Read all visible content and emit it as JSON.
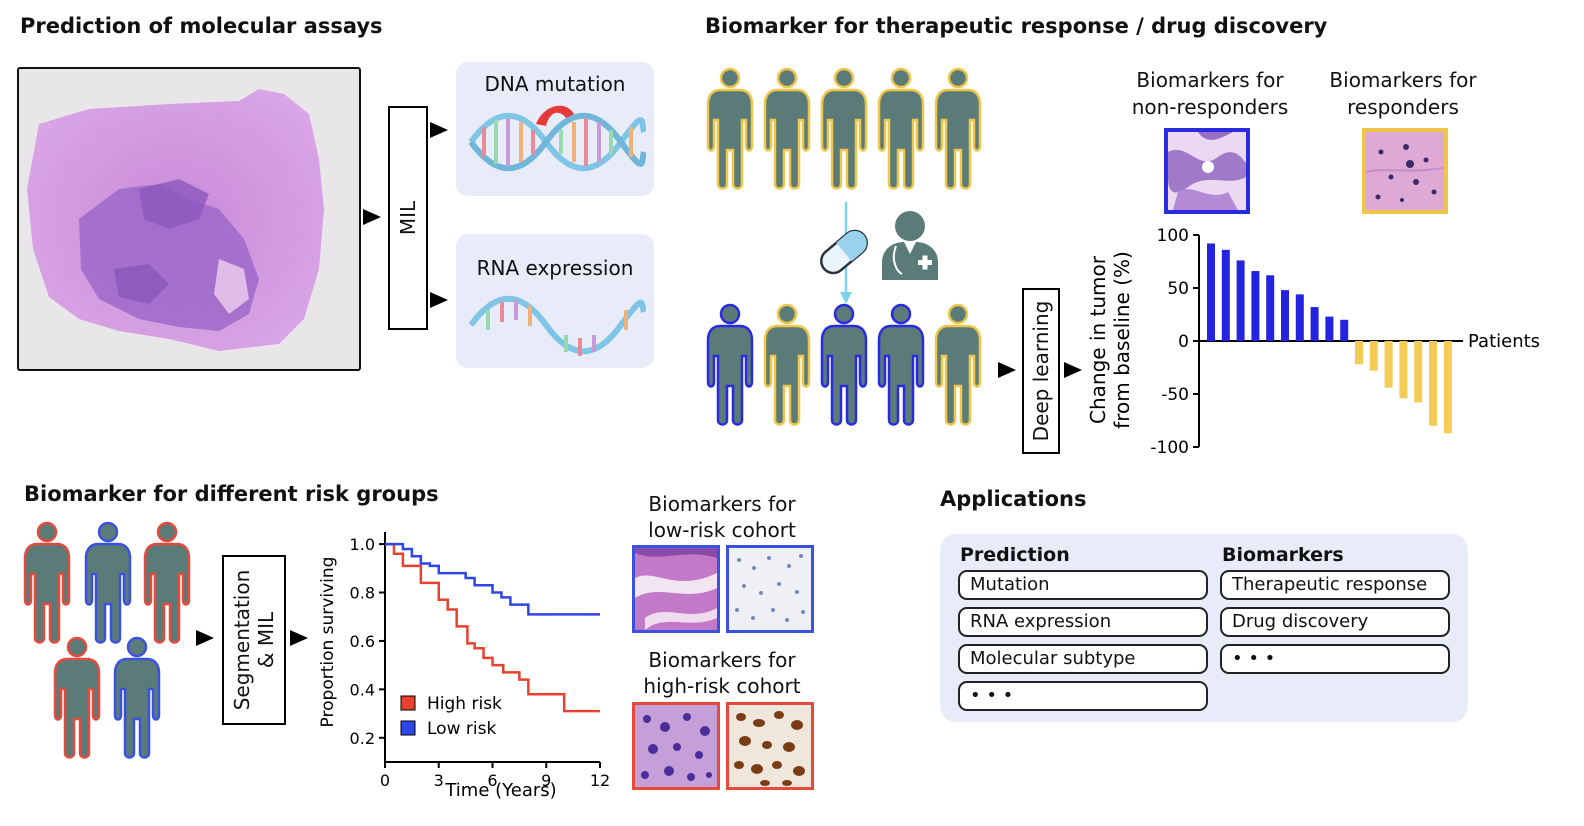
{
  "sections": {
    "molecular_title": "Prediction of molecular assays",
    "therapeutic_title": "Biomarker for therapeutic response / drug discovery",
    "risk_title": "Biomarker for different risk groups",
    "applications_title": "Applications"
  },
  "molecular": {
    "mil_label": "MIL",
    "dna_label": "DNA mutation",
    "rna_label": "RNA expression"
  },
  "therapeutic": {
    "deep_learning_label": "Deep learning",
    "nonresponders_line1": "Biomarkers for",
    "nonresponders_line2": "non-responders",
    "responders_line1": "Biomarkers for",
    "responders_line2": "responders"
  },
  "risk": {
    "segmentation_line1": "Segmentation",
    "segmentation_line2": "& MIL",
    "lowrisk_line1": "Biomarkers for",
    "lowrisk_line2": "low-risk cohort",
    "highrisk_line1": "Biomarkers for",
    "highrisk_line2": "high-risk cohort"
  },
  "applications": {
    "prediction_header": "Prediction",
    "biomarkers_header": "Biomarkers",
    "prediction_items": [
      "Mutation",
      "RNA expression",
      "Molecular subtype",
      "• • •"
    ],
    "biomarker_items": [
      "Therapeutic response",
      "Drug discovery",
      "• • •"
    ]
  },
  "colors": {
    "patient_body": "#5b7b78",
    "responder_outline": "#f0c64a",
    "nonresponder_outline": "#2a2ae0",
    "highrisk_outline": "#e64a3c",
    "lowrisk_outline": "#3a52e0",
    "bar_positive": "#2424e0",
    "bar_negative": "#f2cc55",
    "app_panel": "#e8ebf8"
  },
  "chart_data": [
    {
      "type": "bar",
      "title": "",
      "xlabel": "Patients",
      "ylabel": "Change in tumor from baseline (%)",
      "ylabel_line1": "Change in tumor",
      "ylabel_line2": "from baseline (%)",
      "ylim": [
        -100,
        100
      ],
      "yticks": [
        "100",
        "50",
        "0",
        "-50",
        "-100"
      ],
      "series": [
        {
          "role": "non-responders",
          "values": [
            92,
            86,
            76,
            66,
            62,
            48,
            44,
            32,
            23,
            20
          ]
        },
        {
          "role": "responders",
          "values": [
            -22,
            -28,
            -44,
            -54,
            -58,
            -80,
            -87
          ]
        }
      ]
    },
    {
      "type": "line",
      "title": "",
      "xlabel": "Time (Years)",
      "ylabel": "Proportion surviving",
      "xlim": [
        0,
        12
      ],
      "ylim": [
        0.1,
        1.05
      ],
      "xticks": [
        "0",
        "3",
        "6",
        "9",
        "12"
      ],
      "yticks": [
        "1.0",
        "0.8",
        "0.6",
        "0.4",
        "0.2"
      ],
      "series": [
        {
          "name": "High risk",
          "color": "#e8412f",
          "x": [
            0,
            0.5,
            1,
            2,
            3,
            3.5,
            4,
            4.3,
            4.6,
            5,
            5.5,
            6,
            6.6,
            7,
            7.5,
            8,
            9,
            10,
            11,
            12
          ],
          "y": [
            1.0,
            0.96,
            0.91,
            0.84,
            0.77,
            0.73,
            0.66,
            0.66,
            0.59,
            0.57,
            0.53,
            0.5,
            0.47,
            0.47,
            0.44,
            0.38,
            0.38,
            0.31,
            0.31,
            0.31
          ]
        },
        {
          "name": "Low risk",
          "color": "#2f45e8",
          "x": [
            0,
            0.5,
            1,
            1.5,
            2,
            2.5,
            3,
            4,
            4.5,
            5,
            5.5,
            6,
            6.5,
            7,
            7.5,
            8,
            9,
            10,
            12
          ],
          "y": [
            1.0,
            1.0,
            0.98,
            0.95,
            0.92,
            0.91,
            0.88,
            0.88,
            0.86,
            0.83,
            0.83,
            0.8,
            0.78,
            0.75,
            0.75,
            0.71,
            0.71,
            0.71,
            0.71
          ]
        }
      ]
    }
  ]
}
